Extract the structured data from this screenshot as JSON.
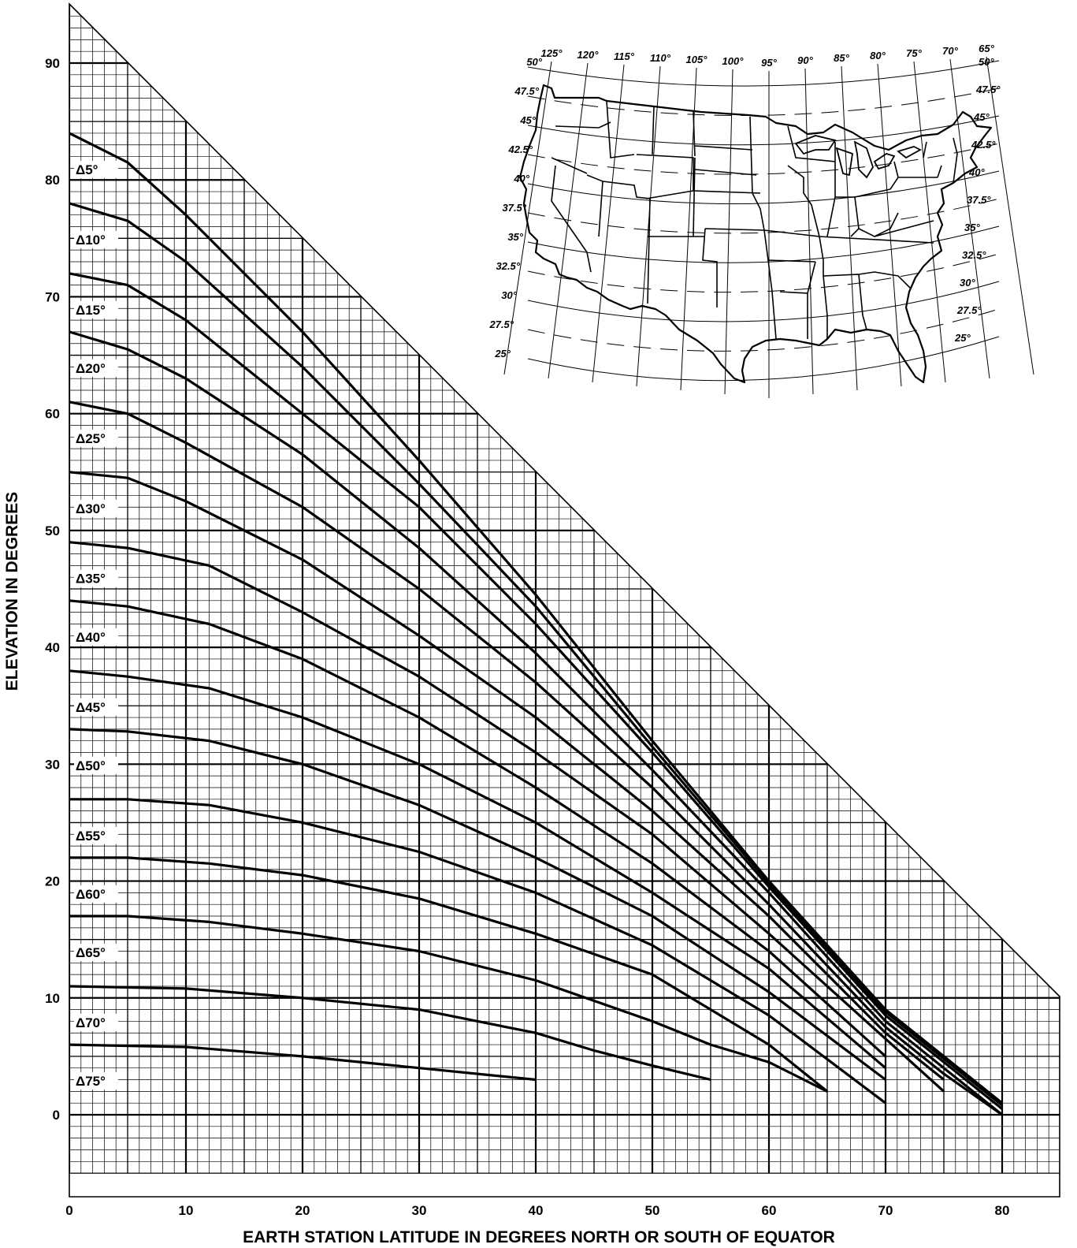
{
  "chart_data": {
    "type": "line",
    "xlabel": "EARTH STATION LATITUDE IN DEGREES NORTH OR SOUTH OF EQUATOR",
    "ylabel": "ELEVATION IN DEGREES",
    "xlim": [
      0,
      85
    ],
    "ylim": [
      -5,
      95
    ],
    "x_ticks": [
      "0",
      "10",
      "20",
      "30",
      "40",
      "50",
      "60",
      "70",
      "80"
    ],
    "y_ticks": [
      "0",
      "10",
      "20",
      "30",
      "40",
      "50",
      "60",
      "70",
      "80",
      "90"
    ],
    "grid": true,
    "series": [
      {
        "name": "Δ5°",
        "points": [
          [
            0,
            84
          ],
          [
            5,
            81.5
          ],
          [
            10,
            77
          ],
          [
            20,
            67
          ],
          [
            30,
            56
          ],
          [
            40,
            44.5
          ],
          [
            50,
            32
          ],
          [
            60,
            20
          ],
          [
            70,
            9
          ],
          [
            75,
            5
          ],
          [
            80,
            1
          ]
        ]
      },
      {
        "name": "Δ10°",
        "points": [
          [
            0,
            78
          ],
          [
            5,
            76.5
          ],
          [
            10,
            73
          ],
          [
            20,
            64
          ],
          [
            30,
            54
          ],
          [
            40,
            43.5
          ],
          [
            50,
            31.5
          ],
          [
            60,
            19.8
          ],
          [
            70,
            8.8
          ],
          [
            75,
            4.8
          ],
          [
            80,
            0.8
          ]
        ]
      },
      {
        "name": "Δ15°",
        "points": [
          [
            0,
            72
          ],
          [
            5,
            71
          ],
          [
            10,
            68
          ],
          [
            20,
            60
          ],
          [
            30,
            52
          ],
          [
            40,
            42
          ],
          [
            50,
            31
          ],
          [
            60,
            19.5
          ],
          [
            70,
            8.5
          ],
          [
            75,
            4.5
          ],
          [
            80,
            0.5
          ]
        ]
      },
      {
        "name": "Δ20°",
        "points": [
          [
            0,
            67
          ],
          [
            5,
            65.5
          ],
          [
            10,
            63
          ],
          [
            20,
            56.5
          ],
          [
            30,
            48.5
          ],
          [
            40,
            39.5
          ],
          [
            50,
            29.5
          ],
          [
            60,
            19
          ],
          [
            70,
            8
          ],
          [
            75,
            4
          ],
          [
            80,
            0
          ]
        ]
      },
      {
        "name": "Δ25°",
        "points": [
          [
            0,
            61
          ],
          [
            5,
            60
          ],
          [
            10,
            57.5
          ],
          [
            20,
            52
          ],
          [
            30,
            45
          ],
          [
            40,
            37
          ],
          [
            50,
            28
          ],
          [
            60,
            18
          ],
          [
            70,
            7.5
          ],
          [
            75,
            3.5
          ],
          [
            80,
            0
          ]
        ]
      },
      {
        "name": "Δ30°",
        "points": [
          [
            0,
            55
          ],
          [
            5,
            54.5
          ],
          [
            10,
            52.5
          ],
          [
            20,
            47.5
          ],
          [
            30,
            41
          ],
          [
            40,
            34
          ],
          [
            50,
            26
          ],
          [
            60,
            17
          ],
          [
            70,
            7
          ],
          [
            75,
            3
          ]
        ]
      },
      {
        "name": "Δ35°",
        "points": [
          [
            0,
            49
          ],
          [
            5,
            48.5
          ],
          [
            12,
            47
          ],
          [
            20,
            43
          ],
          [
            30,
            37.5
          ],
          [
            40,
            31
          ],
          [
            50,
            24
          ],
          [
            60,
            15.5
          ],
          [
            70,
            6.5
          ],
          [
            75,
            2
          ]
        ]
      },
      {
        "name": "Δ40°",
        "points": [
          [
            0,
            44
          ],
          [
            5,
            43.5
          ],
          [
            12,
            42
          ],
          [
            20,
            39
          ],
          [
            30,
            34
          ],
          [
            40,
            28
          ],
          [
            50,
            21.5
          ],
          [
            60,
            14
          ],
          [
            70,
            5
          ]
        ]
      },
      {
        "name": "Δ45°",
        "points": [
          [
            0,
            38
          ],
          [
            5,
            37.5
          ],
          [
            12,
            36.5
          ],
          [
            20,
            34
          ],
          [
            30,
            30
          ],
          [
            40,
            25
          ],
          [
            50,
            19
          ],
          [
            60,
            12.5
          ],
          [
            70,
            4
          ]
        ]
      },
      {
        "name": "Δ50°",
        "points": [
          [
            0,
            33
          ],
          [
            5,
            32.8
          ],
          [
            12,
            32
          ],
          [
            20,
            30
          ],
          [
            30,
            26.5
          ],
          [
            40,
            22
          ],
          [
            50,
            17
          ],
          [
            60,
            10.5
          ],
          [
            70,
            3
          ]
        ]
      },
      {
        "name": "Δ55°",
        "points": [
          [
            0,
            27
          ],
          [
            5,
            27
          ],
          [
            12,
            26.5
          ],
          [
            20,
            25
          ],
          [
            30,
            22.5
          ],
          [
            40,
            19
          ],
          [
            50,
            14.5
          ],
          [
            60,
            8.5
          ],
          [
            70,
            1
          ]
        ]
      },
      {
        "name": "Δ60°",
        "points": [
          [
            0,
            22
          ],
          [
            5,
            22
          ],
          [
            12,
            21.5
          ],
          [
            20,
            20.5
          ],
          [
            30,
            18.5
          ],
          [
            40,
            15.5
          ],
          [
            50,
            12
          ],
          [
            60,
            6
          ],
          [
            65,
            2
          ]
        ]
      },
      {
        "name": "Δ65°",
        "points": [
          [
            0,
            17
          ],
          [
            5,
            17
          ],
          [
            12,
            16.5
          ],
          [
            20,
            15.5
          ],
          [
            30,
            14
          ],
          [
            40,
            11.5
          ],
          [
            50,
            8
          ],
          [
            55,
            6
          ],
          [
            60,
            4.5
          ],
          [
            65,
            2
          ]
        ]
      },
      {
        "name": "Δ70°",
        "points": [
          [
            0,
            11
          ],
          [
            10,
            10.8
          ],
          [
            20,
            10
          ],
          [
            30,
            9
          ],
          [
            40,
            7
          ],
          [
            45,
            5.5
          ],
          [
            50,
            4.2
          ],
          [
            55,
            3
          ]
        ]
      },
      {
        "name": "Δ75°",
        "points": [
          [
            0,
            6
          ],
          [
            10,
            5.8
          ],
          [
            20,
            5
          ],
          [
            30,
            4
          ],
          [
            40,
            3
          ]
        ]
      }
    ]
  },
  "map": {
    "longitude_labels": [
      "125°",
      "120°",
      "115°",
      "110°",
      "105°",
      "100°",
      "95°",
      "90°",
      "85°",
      "80°",
      "75°",
      "70°",
      "65°"
    ],
    "latitude_labels_left": [
      "50°",
      "47.5°",
      "45°",
      "42.5°",
      "40°",
      "37.5°",
      "35°",
      "32.5°",
      "30°",
      "27.5°",
      "25°"
    ],
    "latitude_labels_right": [
      "50°",
      "47.5°",
      "45°",
      "42.5°",
      "40°",
      "37.5°",
      "35°",
      "32.5°",
      "30°",
      "27.5°",
      "25°"
    ]
  }
}
